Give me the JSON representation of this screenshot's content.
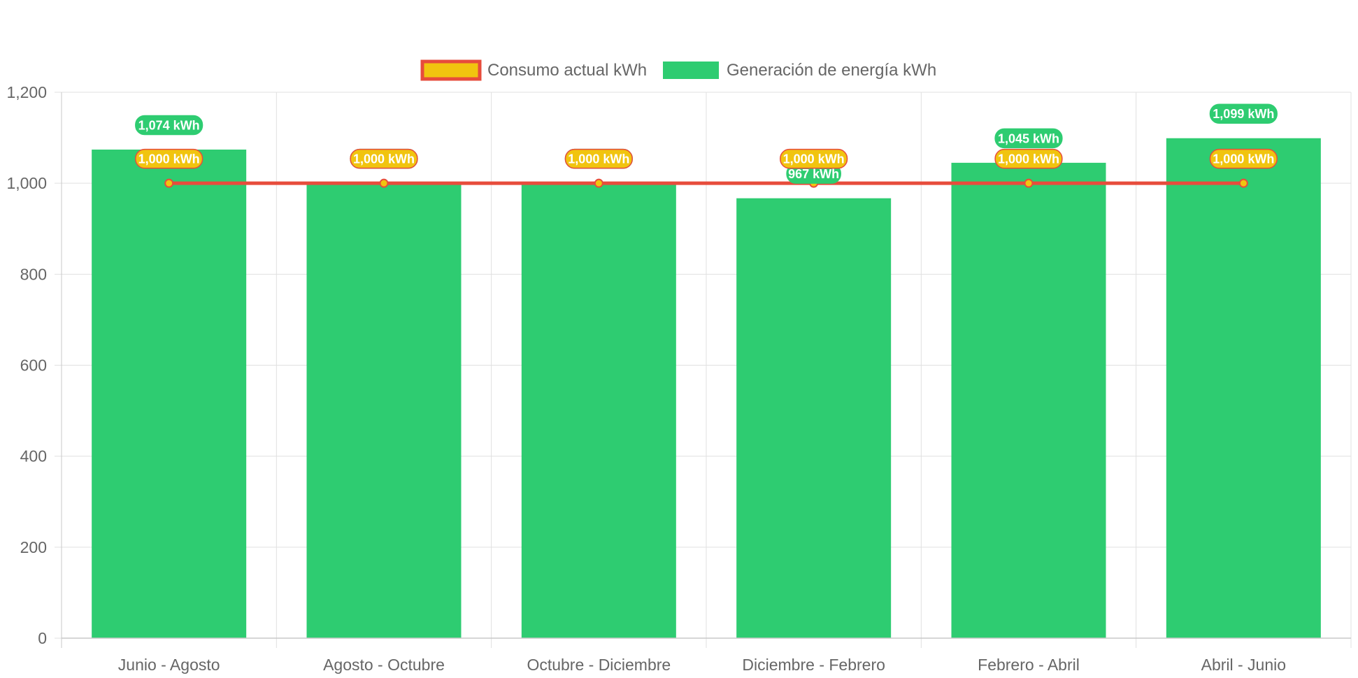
{
  "colors": {
    "bar_fill": "#2ecc71",
    "line_stroke": "#e74c3c",
    "point_fill": "#f1c40f",
    "label_line_bg": "#f1c40f",
    "label_line_border": "#e74c3c",
    "label_bar_bg": "#2ecc71",
    "label_text": "#ffffff",
    "grid": "#e0e0e0",
    "axis": "#c8c8c8",
    "tick_text": "#666666"
  },
  "chart_data": {
    "type": "bar",
    "title": "",
    "xlabel": "",
    "ylabel": "",
    "categories": [
      "Junio - Agosto",
      "Agosto - Octubre",
      "Octubre - Diciembre",
      "Diciembre - Febrero",
      "Febrero - Abril",
      "Abril - Junio"
    ],
    "ylim": [
      0,
      1200
    ],
    "yticks": [
      0,
      200,
      400,
      600,
      800,
      1000,
      1200
    ],
    "ytick_labels": [
      "0",
      "200",
      "400",
      "600",
      "800",
      "1,000",
      "1,200"
    ],
    "grid": true,
    "legend_position": "top-center",
    "series": [
      {
        "name": "Consumo actual kWh",
        "type": "line",
        "values": [
          1000,
          1000,
          1000,
          1000,
          1000,
          1000
        ],
        "labels": [
          "1,000 kWh",
          "1,000 kWh",
          "1,000 kWh",
          "1,000 kWh",
          "1,000 kWh",
          "1,000 kWh"
        ]
      },
      {
        "name": "Generación de energía kWh",
        "type": "bar",
        "values": [
          1074,
          1000,
          1000,
          967,
          1045,
          1099
        ],
        "labels": [
          "1,074 kWh",
          "1,000 kWh",
          "1,000 kWh",
          "967 kWh",
          "1,045 kWh",
          "1,099 kWh"
        ]
      }
    ]
  }
}
